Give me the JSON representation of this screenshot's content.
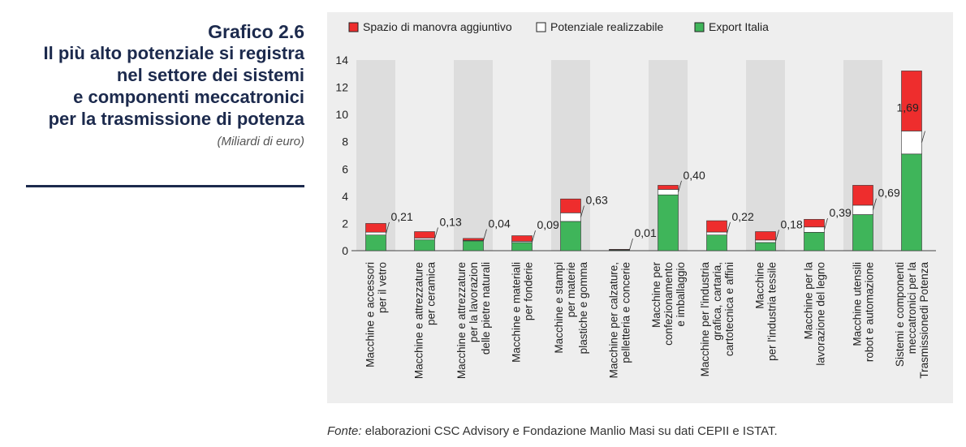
{
  "heading": {
    "number": "Grafico 2.6",
    "title_lines": [
      "Il più alto potenziale si registra",
      "nel settore dei sistemi",
      "e componenti meccatronici",
      "per la trasmissione di potenza"
    ],
    "unit": "(Miliardi di euro)"
  },
  "source": {
    "prefix": "Fonte:",
    "text": " elaborazioni CSC Advisory e Fondazione Manlio Masi su dati CEPII e ISTAT."
  },
  "colors": {
    "spazio": "#ee2d2d",
    "potenziale": "#ffffff",
    "export": "#3fb55a",
    "band": "#dddddd",
    "panel": "#eeeeee"
  },
  "chart_data": {
    "type": "bar",
    "stacked": true,
    "ylim": [
      0,
      14
    ],
    "yticks": [
      "0",
      "2",
      "4",
      "6",
      "8",
      "10",
      "12",
      "14"
    ],
    "legend_position": "top",
    "legend": [
      "Spazio di manovra aggiuntivo",
      "Potenziale realizzabile",
      "Export Italia"
    ],
    "categories": [
      [
        "Macchine e accessori",
        "per il vetro"
      ],
      [
        "Macchine e attrezzature",
        "per ceramica"
      ],
      [
        "Macchine e attrezzature",
        "per la lavorazion",
        "delle pietre naturali"
      ],
      [
        "Macchine e materiali",
        "per fonderie"
      ],
      [
        "Macchine e stampi",
        "per materie",
        "plastiche e gomma"
      ],
      [
        "Macchine per calzature,",
        "pelletteria e concerie"
      ],
      [
        "Macchine per",
        "confezionamento",
        "e imballaggio"
      ],
      [
        "Macchine per l'industria",
        "grafica, cartaria,",
        "cartotecnica e affini"
      ],
      [
        "Macchine",
        "per l'industria tessile"
      ],
      [
        "Macchine per la",
        "lavorazione del legno"
      ],
      [
        "Macchine utensili",
        "robot e automazione"
      ],
      [
        "Sistemi e componenti",
        "meccatronici per la",
        "Trasmissionedi Potenza"
      ]
    ],
    "series": [
      {
        "name": "Export Italia",
        "values": [
          1.15,
          0.8,
          0.72,
          0.6,
          2.15,
          0.05,
          4.1,
          1.15,
          0.6,
          1.35,
          2.65,
          7.1
        ]
      },
      {
        "name": "Potenziale realizzabile",
        "values": [
          0.21,
          0.13,
          0.04,
          0.09,
          0.63,
          0.01,
          0.4,
          0.22,
          0.18,
          0.39,
          0.69,
          1.69
        ]
      },
      {
        "name": "Spazio di manovra aggiuntivo",
        "values": [
          0.64,
          0.47,
          0.14,
          0.41,
          1.02,
          0.04,
          0.3,
          0.83,
          0.62,
          0.56,
          1.46,
          4.41
        ]
      }
    ],
    "data_labels": [
      "0,21",
      "0,13",
      "0,04",
      "0,09",
      "0,63",
      "0,01",
      "0,40",
      "0,22",
      "0,18",
      "0,39",
      "0,69",
      "1,69"
    ]
  }
}
